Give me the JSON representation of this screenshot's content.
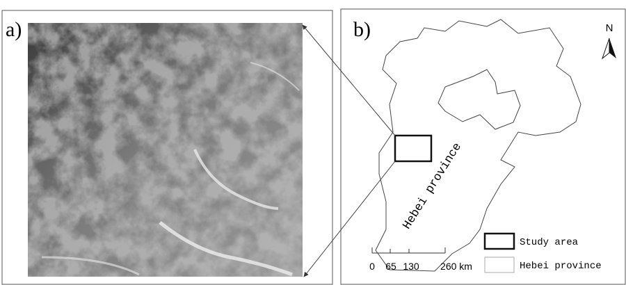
{
  "panel_a": {
    "label": "a)"
  },
  "panel_b": {
    "label": "b)",
    "north": "N",
    "region_label": "Hebei province",
    "scale_bar": {
      "labels": [
        "0",
        "65",
        "130",
        "260 km"
      ]
    },
    "legend": {
      "items": [
        "Study area",
        "Hebei province"
      ]
    }
  }
}
